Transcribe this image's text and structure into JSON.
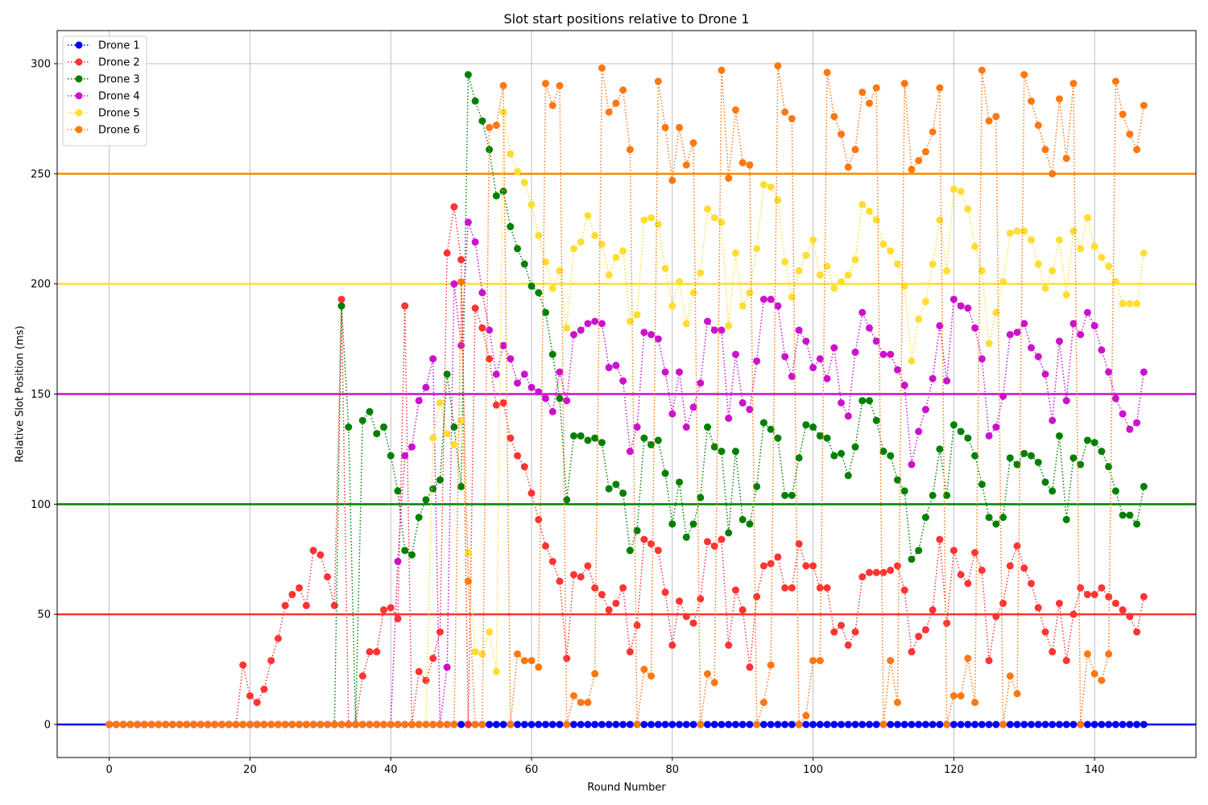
{
  "chart_data": {
    "type": "line",
    "title": "Slot start positions relative to Drone 1",
    "xlabel": "Round Number",
    "ylabel": "Relative Slot Position (ms)",
    "xlim": [
      -7.4,
      154.4
    ],
    "ylim": [
      -15,
      315
    ],
    "xticks": [
      0,
      20,
      40,
      60,
      80,
      100,
      120,
      140
    ],
    "yticks": [
      0,
      50,
      100,
      150,
      200,
      250,
      300
    ],
    "grid": true,
    "legend_position": "top-left",
    "reference_lines": [
      {
        "y": 0,
        "color": "#0000ff"
      },
      {
        "y": 50,
        "color": "#ff3333"
      },
      {
        "y": 100,
        "color": "#008000"
      },
      {
        "y": 150,
        "color": "#cc11cc"
      },
      {
        "y": 200,
        "color": "#ffdd33"
      },
      {
        "y": 250,
        "color": "#ff8800"
      }
    ],
    "series": [
      {
        "name": "Drone 1",
        "color": "#0000ff",
        "start": 0,
        "values": [
          0,
          0,
          0,
          0,
          0,
          0,
          0,
          0,
          0,
          0,
          0,
          0,
          0,
          0,
          0,
          0,
          0,
          0,
          0,
          0,
          0,
          0,
          0,
          0,
          0,
          0,
          0,
          0,
          0,
          0,
          0,
          0,
          0,
          0,
          0,
          0,
          0,
          0,
          0,
          0,
          0,
          0,
          0,
          0,
          0,
          0,
          0,
          0,
          0,
          0,
          0,
          0,
          0,
          0,
          0,
          0,
          0,
          0,
          0,
          0,
          0,
          0,
          0,
          0,
          0,
          0,
          0,
          0,
          0,
          0,
          0,
          0,
          0,
          0,
          0,
          0,
          0,
          0,
          0,
          0,
          0,
          0,
          0,
          0,
          0,
          0,
          0,
          0,
          0,
          0,
          0,
          0,
          0,
          0,
          0,
          0,
          0,
          0,
          0,
          0,
          0,
          0,
          0,
          0,
          0,
          0,
          0,
          0,
          0,
          0,
          0,
          0,
          0,
          0,
          0,
          0,
          0,
          0,
          0,
          0,
          0,
          0,
          0,
          0,
          0,
          0,
          0,
          0,
          0,
          0,
          0,
          0,
          0,
          0,
          0,
          0,
          0,
          0,
          0,
          0,
          0,
          0,
          0,
          0,
          0,
          0,
          0,
          0
        ]
      },
      {
        "name": "Drone 2",
        "color": "#ff3333",
        "start": 0,
        "values": [
          0,
          0,
          0,
          0,
          0,
          0,
          0,
          0,
          0,
          0,
          0,
          0,
          0,
          0,
          0,
          0,
          0,
          0,
          0,
          27,
          13,
          10,
          16,
          29,
          39,
          54,
          59,
          62,
          54,
          79,
          77,
          67,
          54,
          193,
          0,
          0,
          22,
          33,
          33,
          52,
          53,
          48,
          190,
          0,
          24,
          20,
          30,
          42,
          214,
          235,
          211,
          0,
          189,
          180,
          166,
          145,
          146,
          130,
          122,
          117,
          105,
          93,
          81,
          74,
          65,
          30,
          68,
          67,
          72,
          62,
          59,
          52,
          55,
          62,
          33,
          45,
          84,
          82,
          79,
          60,
          36,
          56,
          49,
          46,
          57,
          83,
          81,
          84,
          36,
          61,
          52,
          26,
          58,
          72,
          73,
          76,
          62,
          62,
          82,
          72,
          72,
          62,
          62,
          42,
          45,
          36,
          42,
          67,
          69,
          69,
          69,
          70,
          72,
          61,
          33,
          40,
          43,
          52,
          84,
          46,
          79,
          68,
          64,
          78,
          70,
          29,
          49,
          55,
          72,
          81,
          71,
          64,
          53,
          42,
          33,
          55,
          29,
          50,
          62,
          59,
          59,
          62,
          58,
          55,
          52,
          49,
          42,
          58
        ]
      },
      {
        "name": "Drone 3",
        "color": "#008000",
        "start": 0,
        "values": [
          0,
          0,
          0,
          0,
          0,
          0,
          0,
          0,
          0,
          0,
          0,
          0,
          0,
          0,
          0,
          0,
          0,
          0,
          0,
          0,
          0,
          0,
          0,
          0,
          0,
          0,
          0,
          0,
          0,
          0,
          0,
          0,
          0,
          190,
          135,
          0,
          138,
          142,
          132,
          135,
          122,
          106,
          79,
          77,
          94,
          102,
          107,
          111,
          159,
          135,
          108,
          295,
          283,
          274,
          261,
          240,
          242,
          226,
          216,
          209,
          199,
          196,
          187,
          168,
          148,
          102,
          131,
          131,
          129,
          130,
          128,
          107,
          109,
          105,
          79,
          88,
          130,
          127,
          129,
          114,
          91,
          110,
          85,
          91,
          103,
          135,
          126,
          124,
          87,
          124,
          93,
          91,
          108,
          137,
          134,
          130,
          104,
          104,
          121,
          136,
          135,
          131,
          130,
          122,
          123,
          113,
          126,
          147,
          147,
          138,
          124,
          122,
          111,
          106,
          75,
          79,
          94,
          104,
          125,
          104,
          136,
          133,
          130,
          122,
          109,
          94,
          91,
          94,
          121,
          118,
          123,
          122,
          119,
          110,
          106,
          131,
          93,
          121,
          118,
          129,
          128,
          124,
          117,
          106,
          95,
          95,
          91,
          108
        ]
      },
      {
        "name": "Drone 4",
        "color": "#cc11cc",
        "start": 0,
        "values": [
          0,
          0,
          0,
          0,
          0,
          0,
          0,
          0,
          0,
          0,
          0,
          0,
          0,
          0,
          0,
          0,
          0,
          0,
          0,
          0,
          0,
          0,
          0,
          0,
          0,
          0,
          0,
          0,
          0,
          0,
          0,
          0,
          0,
          0,
          0,
          0,
          0,
          0,
          0,
          0,
          0,
          74,
          122,
          126,
          147,
          153,
          166,
          0,
          26,
          200,
          172,
          228,
          219,
          196,
          179,
          159,
          172,
          166,
          155,
          159,
          153,
          151,
          148,
          142,
          160,
          147,
          177,
          179,
          182,
          183,
          182,
          162,
          163,
          156,
          124,
          135,
          178,
          177,
          175,
          160,
          141,
          160,
          135,
          144,
          155,
          183,
          179,
          179,
          139,
          168,
          146,
          143,
          165,
          193,
          193,
          190,
          167,
          158,
          179,
          174,
          162,
          166,
          157,
          171,
          146,
          140,
          169,
          187,
          180,
          174,
          168,
          168,
          161,
          154,
          118,
          133,
          143,
          157,
          181,
          156,
          193,
          190,
          189,
          180,
          166,
          131,
          135,
          149,
          177,
          178,
          182,
          171,
          167,
          159,
          138,
          174,
          147,
          182,
          177,
          187,
          181,
          170,
          160,
          148,
          141,
          134,
          137,
          160
        ]
      },
      {
        "name": "Drone 5",
        "color": "#ffdd33",
        "start": 45,
        "values": [
          0,
          130,
          146,
          132,
          127,
          138,
          78,
          33,
          32,
          42,
          24,
          278,
          259,
          251,
          246,
          236,
          222,
          210,
          198,
          206,
          180,
          216,
          219,
          231,
          222,
          218,
          204,
          212,
          215,
          183,
          186,
          229,
          230,
          227,
          207,
          190,
          201,
          182,
          196,
          205,
          234,
          230,
          228,
          181,
          214,
          190,
          196,
          216,
          245,
          244,
          238,
          210,
          194,
          206,
          213,
          220,
          204,
          208,
          198,
          201,
          204,
          211,
          236,
          233,
          229,
          218,
          215,
          209,
          199,
          165,
          184,
          192,
          209,
          229,
          206,
          243,
          242,
          234,
          217,
          206,
          173,
          187,
          201,
          223,
          224,
          224,
          220,
          209,
          198,
          206,
          220,
          195,
          224,
          216,
          230,
          217,
          212,
          208,
          201,
          191,
          191,
          191,
          214
        ]
      },
      {
        "name": "Drone 6",
        "color": "#ff7711",
        "start": 0,
        "values": [
          0,
          0,
          0,
          0,
          0,
          0,
          0,
          0,
          0,
          0,
          0,
          0,
          0,
          0,
          0,
          0,
          0,
          0,
          0,
          0,
          0,
          0,
          0,
          0,
          0,
          0,
          0,
          0,
          0,
          0,
          0,
          0,
          0,
          0,
          0,
          0,
          0,
          0,
          0,
          0,
          0,
          0,
          0,
          0,
          0,
          0,
          0,
          0,
          0,
          0,
          201,
          65,
          0,
          0,
          271,
          272,
          290,
          0,
          32,
          29,
          29,
          26,
          291,
          281,
          290,
          0,
          13,
          10,
          10,
          23,
          298,
          278,
          282,
          288,
          261,
          0,
          25,
          22,
          292,
          271,
          247,
          271,
          254,
          264,
          0,
          23,
          19,
          297,
          248,
          279,
          255,
          254,
          0,
          10,
          27,
          299,
          278,
          275,
          0,
          4,
          29,
          29,
          296,
          276,
          268,
          253,
          261,
          287,
          282,
          289,
          0,
          29,
          10,
          291,
          252,
          256,
          260,
          269,
          289,
          0,
          13,
          13,
          30,
          10,
          297,
          274,
          276,
          0,
          22,
          14,
          295,
          283,
          272,
          261,
          250,
          284,
          257,
          291,
          0,
          32,
          23,
          20,
          32,
          292,
          277,
          268,
          261,
          281
        ]
      }
    ]
  }
}
